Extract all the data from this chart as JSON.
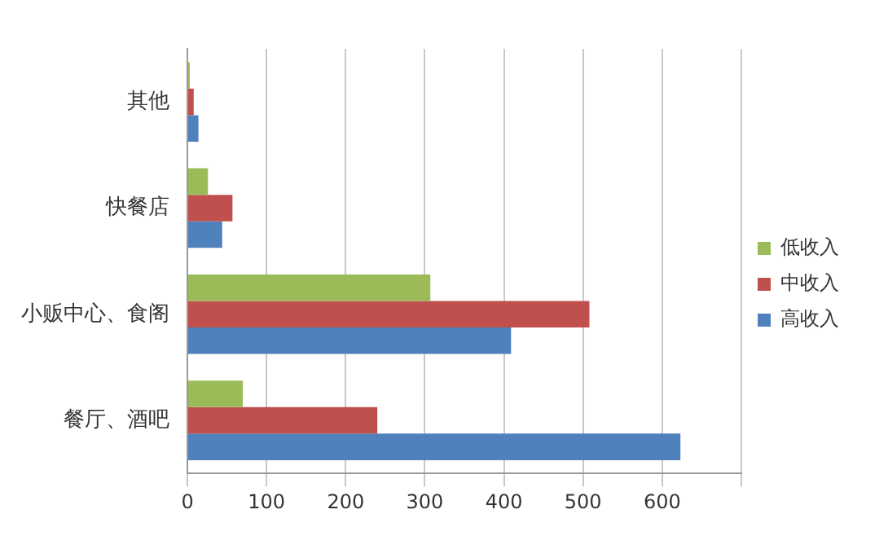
{
  "chart_data": {
    "type": "bar",
    "orientation": "horizontal",
    "categories": [
      "其他",
      "快餐店",
      "小贩中心、食阁",
      "餐厅、酒吧"
    ],
    "series": [
      {
        "name": "低收入",
        "color": "#9bbb59",
        "values": [
          3,
          26,
          307,
          70
        ]
      },
      {
        "name": "中收入",
        "color": "#c0504d",
        "values": [
          8,
          57,
          508,
          240
        ]
      },
      {
        "name": "高收入",
        "color": "#4f81bd",
        "values": [
          14,
          44,
          409,
          623
        ]
      }
    ],
    "xlim": [
      0,
      700
    ],
    "xticks": [
      0,
      100,
      200,
      300,
      400,
      500,
      600,
      {
        "value": 700,
        "label": null
      }
    ],
    "grid": "x",
    "legend": "right"
  }
}
